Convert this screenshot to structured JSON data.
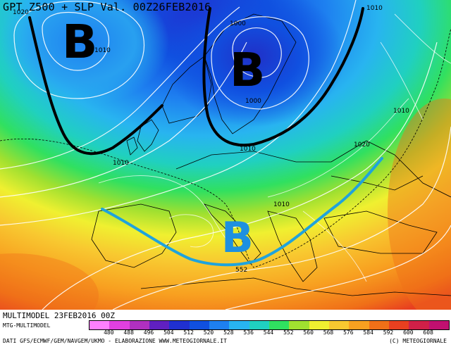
{
  "title": "GPT Z500 + SLP Val. 00Z26FEB2016",
  "footer": {
    "run": "MULTIMODEL 23FEB2016 00Z",
    "model": "MTG-MULTIMODEL",
    "sources": "DATI GFS/ECMWF/GEM/NAVGEM/UKMO - ELABORAZIONE WWW.METEOGIORNALE.IT",
    "copyright": "(C) METEOGIORNALE"
  },
  "legend": {
    "labels": [
      "480",
      "488",
      "496",
      "504",
      "512",
      "520",
      "528",
      "536",
      "544",
      "552",
      "560",
      "568",
      "576",
      "584",
      "592",
      "600",
      "608"
    ],
    "colors": [
      "#ff80ff",
      "#e040e0",
      "#b030c0",
      "#6020c0",
      "#2030d0",
      "#1050e0",
      "#1e80f0",
      "#28b4f0",
      "#20d0c0",
      "#30e060",
      "#a0e030",
      "#f0f030",
      "#f8c830",
      "#f8a020",
      "#f07018",
      "#e84020",
      "#d02048",
      "#c01070"
    ]
  },
  "map_labels": {
    "low_1": "B",
    "low_2": "B",
    "low_3": "B",
    "isobar_1020_tl": "1020",
    "isobar_1010_nw": "1010",
    "isobar_1000": "1000",
    "isobar_1000_b": "1000",
    "isobar_1010_ne": "1010",
    "isobar_1010_e": "1010",
    "isobar_1020_e": "1020",
    "isobar_1010_atl": "1010",
    "isobar_1010_sc": "1010",
    "isobar_1010_c": "1010",
    "gpt_552": "552"
  },
  "colors": {
    "trough_black": "#000000",
    "trough_blue": "#1fa3dc",
    "low_blue_letter": "#1e90e0"
  }
}
